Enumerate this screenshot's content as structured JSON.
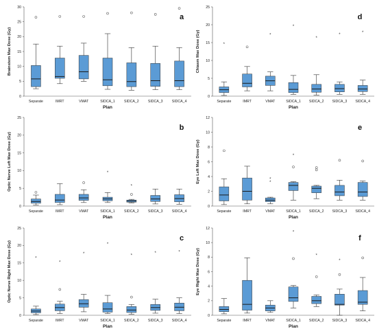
{
  "figure": {
    "box_color": "#5b9bd5",
    "box_stroke": "#2f2f2f",
    "median_color": "#1a1a1a",
    "outlier_color": "#666666"
  },
  "chart_data": [
    {
      "type": "box",
      "panel_label": "a",
      "ylabel": "Brainstem Max Dose (Gy)",
      "xlabel": "Plan",
      "categories": [
        "Separate",
        "IMRT",
        "VMAT",
        "SIDCA_1",
        "SIDCA_2",
        "SIDCA_3",
        "SIDCA_4"
      ],
      "ylim": [
        0,
        30
      ],
      "yticks": [
        0,
        5,
        10,
        15,
        20,
        25,
        30
      ],
      "boxes": [
        {
          "min": 2.5,
          "q1": 3.2,
          "median": 5.8,
          "q3": 10.3,
          "max": 17.5
        },
        {
          "min": 4.2,
          "q1": 6.0,
          "median": 6.6,
          "q3": 12.8,
          "max": 16.8
        },
        {
          "min": 5.0,
          "q1": 5.8,
          "median": 8.2,
          "q3": 13.7,
          "max": 17.8
        },
        {
          "min": 2.3,
          "q1": 3.5,
          "median": 5.5,
          "q3": 12.8,
          "max": 21.0
        },
        {
          "min": 2.0,
          "q1": 3.2,
          "median": 4.9,
          "q3": 11.2,
          "max": 16.3
        },
        {
          "min": 2.2,
          "q1": 3.3,
          "median": 5.2,
          "q3": 11.0,
          "max": 16.8
        },
        {
          "min": 2.2,
          "q1": 3.2,
          "median": 5.2,
          "q3": 11.8,
          "max": 16.3
        }
      ],
      "outliers": [
        {
          "i": 0,
          "v": 26.5,
          "kind": "o"
        },
        {
          "i": 1,
          "v": 26.8,
          "kind": "o"
        },
        {
          "i": 2,
          "v": 26.8,
          "kind": "o"
        },
        {
          "i": 3,
          "v": 27.8,
          "kind": "o"
        },
        {
          "i": 4,
          "v": 28.0,
          "kind": "o"
        },
        {
          "i": 5,
          "v": 27.5,
          "kind": "o"
        },
        {
          "i": 6,
          "v": 29.5,
          "kind": "o"
        }
      ]
    },
    {
      "type": "box",
      "panel_label": "d",
      "ylabel": "Chiasm Max Dose (Gy)",
      "xlabel": "Plan",
      "categories": [
        "Separate",
        "IMRT",
        "VMAT",
        "SIDCA_1",
        "SIDCA_2",
        "SIDCA_3",
        "SIDCA_4"
      ],
      "ylim": [
        0,
        25
      ],
      "yticks": [
        0,
        5,
        10,
        15,
        20,
        25
      ],
      "boxes": [
        {
          "min": 0.2,
          "q1": 1.0,
          "median": 1.8,
          "q3": 2.6,
          "max": 4.0
        },
        {
          "min": 1.5,
          "q1": 2.6,
          "median": 3.6,
          "q3": 6.2,
          "max": 8.3
        },
        {
          "min": 1.5,
          "q1": 3.0,
          "median": 4.3,
          "q3": 5.6,
          "max": 6.8
        },
        {
          "min": 0.5,
          "q1": 1.0,
          "median": 1.9,
          "q3": 3.8,
          "max": 5.8
        },
        {
          "min": 0.3,
          "q1": 1.1,
          "median": 2.0,
          "q3": 3.3,
          "max": 6.0
        },
        {
          "min": 0.5,
          "q1": 1.2,
          "median": 2.1,
          "q3": 3.3,
          "max": 4.0
        },
        {
          "min": 0.5,
          "q1": 1.3,
          "median": 2.0,
          "q3": 3.0,
          "max": 4.5
        }
      ],
      "outliers": [
        {
          "i": 0,
          "v": 14.7,
          "kind": "*"
        },
        {
          "i": 1,
          "v": 13.8,
          "kind": "o"
        },
        {
          "i": 2,
          "v": 17.3,
          "kind": "*"
        },
        {
          "i": 3,
          "v": 19.7,
          "kind": "*"
        },
        {
          "i": 4,
          "v": 16.4,
          "kind": "*"
        },
        {
          "i": 5,
          "v": 17.4,
          "kind": "*"
        },
        {
          "i": 6,
          "v": 18.0,
          "kind": "*"
        }
      ]
    },
    {
      "type": "box",
      "panel_label": "b",
      "ylabel": "Optic Nerve Left Max Dose (Gy)",
      "xlabel": "Plan",
      "categories": [
        "Separate",
        "IMRT",
        "VMAT",
        "SIDCA_1",
        "SIDCA_2",
        "SIDCA_3",
        "SIDCA_4"
      ],
      "ylim": [
        0,
        25
      ],
      "yticks": [
        0,
        5,
        10,
        15,
        20,
        25
      ],
      "boxes": [
        {
          "min": 0.3,
          "q1": 0.8,
          "median": 1.3,
          "q3": 2.0,
          "max": 3.1
        },
        {
          "min": 0.4,
          "q1": 1.0,
          "median": 1.7,
          "q3": 3.3,
          "max": 6.3
        },
        {
          "min": 1.0,
          "q1": 1.6,
          "median": 2.3,
          "q3": 3.3,
          "max": 4.6
        },
        {
          "min": 1.0,
          "q1": 1.5,
          "median": 2.0,
          "q3": 2.5,
          "max": 3.8
        },
        {
          "min": 0.9,
          "q1": 1.1,
          "median": 1.4,
          "q3": 1.7,
          "max": 1.9
        },
        {
          "min": 0.6,
          "q1": 1.3,
          "median": 2.0,
          "q3": 3.0,
          "max": 4.8
        },
        {
          "min": 0.5,
          "q1": 1.2,
          "median": 2.1,
          "q3": 3.2,
          "max": 4.8
        }
      ],
      "outliers": [
        {
          "i": 0,
          "v": 3.9,
          "kind": "o"
        },
        {
          "i": 2,
          "v": 6.6,
          "kind": "o"
        },
        {
          "i": 3,
          "v": 9.6,
          "kind": "*"
        },
        {
          "i": 4,
          "v": 5.8,
          "kind": "*"
        },
        {
          "i": 4,
          "v": 3.3,
          "kind": "o"
        }
      ]
    },
    {
      "type": "box",
      "panel_label": "e",
      "ylabel": "Eye Left Max Dose (Gy)",
      "xlabel": "Plan",
      "categories": [
        "Separate",
        "IMRT",
        "VMAT",
        "SIDCA_1",
        "SIDCA_2",
        "SIDCA_3",
        "SIDCA_4"
      ],
      "ylim": [
        0,
        12
      ],
      "yticks": [
        0,
        2,
        4,
        6,
        8,
        10,
        12
      ],
      "boxes": [
        {
          "min": 0.2,
          "q1": 0.7,
          "median": 1.5,
          "q3": 2.6,
          "max": 3.7
        },
        {
          "min": 0.3,
          "q1": 0.8,
          "median": 2.0,
          "q3": 3.8,
          "max": 5.4
        },
        {
          "min": 0.3,
          "q1": 0.6,
          "median": 0.8,
          "q3": 1.1,
          "max": 1.2
        },
        {
          "min": 0.8,
          "q1": 2.1,
          "median": 2.8,
          "q3": 3.2,
          "max": 3.3
        },
        {
          "min": 1.0,
          "q1": 1.8,
          "median": 2.4,
          "q3": 2.7,
          "max": 2.8
        },
        {
          "min": 0.8,
          "q1": 1.4,
          "median": 1.9,
          "q3": 2.8,
          "max": 3.5
        },
        {
          "min": 0.8,
          "q1": 1.3,
          "median": 1.9,
          "q3": 3.2,
          "max": 3.4
        }
      ],
      "outliers": [
        {
          "i": 0,
          "v": 7.5,
          "kind": "o"
        },
        {
          "i": 2,
          "v": 3.7,
          "kind": "*"
        },
        {
          "i": 2,
          "v": 3.3,
          "kind": "*"
        },
        {
          "i": 3,
          "v": 6.9,
          "kind": "*"
        },
        {
          "i": 3,
          "v": 5.3,
          "kind": "o"
        },
        {
          "i": 4,
          "v": 5.2,
          "kind": "o"
        },
        {
          "i": 4,
          "v": 4.9,
          "kind": "o"
        },
        {
          "i": 5,
          "v": 6.2,
          "kind": "o"
        },
        {
          "i": 6,
          "v": 6.1,
          "kind": "o"
        }
      ]
    },
    {
      "type": "box",
      "panel_label": "c",
      "ylabel": "Optic Nerve Right Max Dose (Gy)",
      "xlabel": "Plan",
      "categories": [
        "Separate",
        "IMRT",
        "VMAT",
        "SIDCA_1",
        "SIDCA_2",
        "SIDCA_3",
        "SIDCA_4"
      ],
      "ylim": [
        0,
        25
      ],
      "yticks": [
        0,
        5,
        10,
        15,
        20,
        25
      ],
      "boxes": [
        {
          "min": 0.2,
          "q1": 0.7,
          "median": 1.2,
          "q3": 1.8,
          "max": 2.6
        },
        {
          "min": 0.5,
          "q1": 1.3,
          "median": 2.2,
          "q3": 3.2,
          "max": 4.0
        },
        {
          "min": 1.0,
          "q1": 2.3,
          "median": 3.3,
          "q3": 4.5,
          "max": 6.0
        },
        {
          "min": 0.5,
          "q1": 0.9,
          "median": 1.8,
          "q3": 3.6,
          "max": 5.7
        },
        {
          "min": 0.3,
          "q1": 0.8,
          "median": 1.5,
          "q3": 2.5,
          "max": 3.1
        },
        {
          "min": 0.6,
          "q1": 1.4,
          "median": 2.2,
          "q3": 3.1,
          "max": 4.6
        },
        {
          "min": 0.5,
          "q1": 1.3,
          "median": 2.3,
          "q3": 3.5,
          "max": 5.0
        }
      ],
      "outliers": [
        {
          "i": 0,
          "v": 16.5,
          "kind": "*"
        },
        {
          "i": 1,
          "v": 15.3,
          "kind": "*"
        },
        {
          "i": 1,
          "v": 7.4,
          "kind": "o"
        },
        {
          "i": 2,
          "v": 17.8,
          "kind": "*"
        },
        {
          "i": 3,
          "v": 20.6,
          "kind": "*"
        },
        {
          "i": 4,
          "v": 17.3,
          "kind": "*"
        },
        {
          "i": 4,
          "v": 5.2,
          "kind": "o"
        },
        {
          "i": 5,
          "v": 18.0,
          "kind": "*"
        },
        {
          "i": 6,
          "v": 18.3,
          "kind": "*"
        }
      ]
    },
    {
      "type": "box",
      "panel_label": "f",
      "ylabel": "Eye Right Max Dose (Gy)",
      "xlabel": "Plan",
      "categories": [
        "Separate",
        "IMRT",
        "VMAT",
        "SIDCA_1",
        "SIDCA_2",
        "SIDCA_3",
        "SIDCA_4"
      ],
      "ylim": [
        0,
        12
      ],
      "yticks": [
        0,
        2,
        4,
        6,
        8,
        10,
        12
      ],
      "boxes": [
        {
          "min": 0.2,
          "q1": 0.5,
          "median": 0.8,
          "q3": 1.2,
          "max": 2.3
        },
        {
          "min": 0.3,
          "q1": 0.7,
          "median": 1.5,
          "q3": 4.8,
          "max": 7.9
        },
        {
          "min": 0.4,
          "q1": 0.6,
          "median": 1.0,
          "q3": 1.4,
          "max": 2.0
        },
        {
          "min": 1.0,
          "q1": 1.9,
          "median": 2.4,
          "q3": 3.9,
          "max": 4.1
        },
        {
          "min": 1.2,
          "q1": 1.6,
          "median": 2.0,
          "q3": 2.6,
          "max": 2.8
        },
        {
          "min": 0.0,
          "q1": 1.4,
          "median": 1.5,
          "q3": 2.9,
          "max": 3.6
        },
        {
          "min": 0.6,
          "q1": 1.5,
          "median": 1.8,
          "q3": 3.4,
          "max": 5.2
        }
      ],
      "outliers": [
        {
          "i": 3,
          "v": 11.5,
          "kind": "*"
        },
        {
          "i": 3,
          "v": 7.8,
          "kind": "o"
        },
        {
          "i": 4,
          "v": 8.3,
          "kind": "*"
        },
        {
          "i": 4,
          "v": 5.3,
          "kind": "o"
        },
        {
          "i": 5,
          "v": 7.6,
          "kind": "*"
        },
        {
          "i": 5,
          "v": 5.6,
          "kind": "o"
        },
        {
          "i": 6,
          "v": 7.9,
          "kind": "o"
        }
      ]
    }
  ]
}
